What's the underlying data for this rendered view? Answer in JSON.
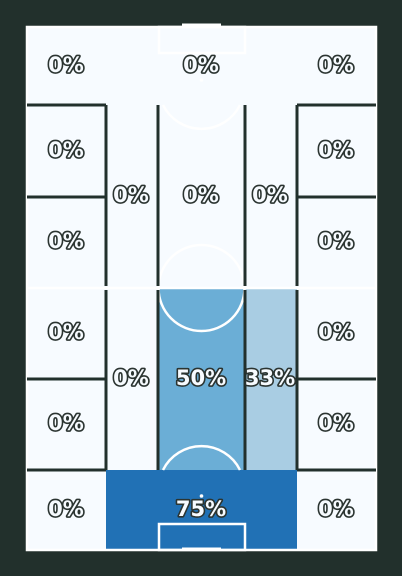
{
  "zones": [
    {
      "id": "left-top",
      "label": "0%",
      "fill": "#f7fbff"
    },
    {
      "id": "center-top",
      "label": "0%",
      "fill": "#f7fbff"
    },
    {
      "id": "right-top",
      "label": "0%",
      "fill": "#f7fbff"
    },
    {
      "id": "left-upper-mid",
      "label": "0%",
      "fill": "#f7fbff"
    },
    {
      "id": "left-mid-upper",
      "label": "0%",
      "fill": "#f7fbff"
    },
    {
      "id": "left-halfspace-upper",
      "label": "0%",
      "fill": "#f7fbff"
    },
    {
      "id": "center-upper",
      "label": "0%",
      "fill": "#f7fbff"
    },
    {
      "id": "right-halfspace-upper",
      "label": "0%",
      "fill": "#f7fbff"
    },
    {
      "id": "right-upper-mid",
      "label": "0%",
      "fill": "#f7fbff"
    },
    {
      "id": "right-mid-upper",
      "label": "0%",
      "fill": "#f7fbff"
    },
    {
      "id": "left-mid-lower",
      "label": "0%",
      "fill": "#f7fbff"
    },
    {
      "id": "left-lower-mid",
      "label": "0%",
      "fill": "#f7fbff"
    },
    {
      "id": "left-halfspace-lower",
      "label": "0%",
      "fill": "#f7fbff"
    },
    {
      "id": "center-lower",
      "label": "50%",
      "fill": "#6baed6"
    },
    {
      "id": "right-halfspace-lower",
      "label": "33%",
      "fill": "#a9cde3"
    },
    {
      "id": "right-mid-lower",
      "label": "0%",
      "fill": "#f7fbff"
    },
    {
      "id": "right-lower-mid",
      "label": "0%",
      "fill": "#f7fbff"
    },
    {
      "id": "left-bottom",
      "label": "0%",
      "fill": "#f7fbff"
    },
    {
      "id": "center-bottom",
      "label": "75%",
      "fill": "#2171b5"
    },
    {
      "id": "right-bottom",
      "label": "0%",
      "fill": "#f7fbff"
    }
  ],
  "colors": {
    "background": "#22302c",
    "pitch_lines": "#ffffff",
    "zone_borders": "#22302c",
    "label_text": "#f7fbff",
    "label_outline": "#2b3431"
  }
}
